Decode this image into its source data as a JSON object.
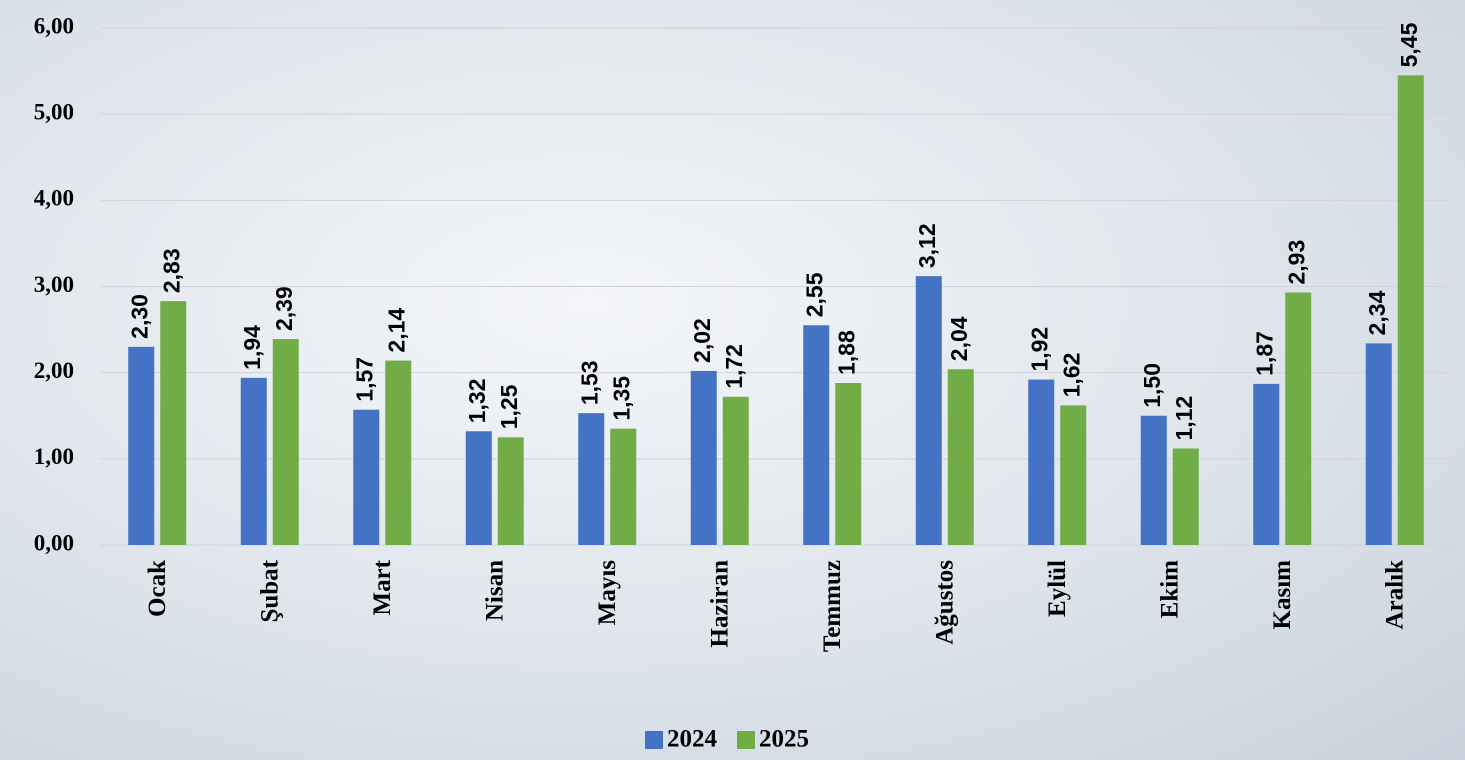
{
  "chart_data": {
    "type": "bar",
    "categories": [
      "Ocak",
      "Şubat",
      "Mart",
      "Nisan",
      "Mayıs",
      "Haziran",
      "Temmuz",
      "Ağustos",
      "Eylül",
      "Ekim",
      "Kasım",
      "Aralık"
    ],
    "series": [
      {
        "name": "2024",
        "color": "#4472c4",
        "values": [
          2.3,
          1.94,
          1.57,
          1.32,
          1.53,
          2.02,
          2.55,
          3.12,
          1.92,
          1.5,
          1.87,
          2.34
        ],
        "value_labels": [
          "2,30",
          "1,94",
          "1,57",
          "1,32",
          "1,53",
          "2,02",
          "2,55",
          "3,12",
          "1,92",
          "1,50",
          "1,87",
          "2,34"
        ]
      },
      {
        "name": "2025",
        "color": "#70ad47",
        "values": [
          2.83,
          2.39,
          2.14,
          1.25,
          1.35,
          1.72,
          1.88,
          2.04,
          1.62,
          1.12,
          2.93,
          5.45
        ],
        "value_labels": [
          "2,83",
          "2,39",
          "2,14",
          "1,25",
          "1,35",
          "1,72",
          "1,88",
          "2,04",
          "1,62",
          "1,12",
          "2,93",
          "5,45"
        ]
      }
    ],
    "ylim": [
      0,
      6
    ],
    "yticks": [
      {
        "value": 0,
        "label": "0,00"
      },
      {
        "value": 1,
        "label": "1,00"
      },
      {
        "value": 2,
        "label": "2,00"
      },
      {
        "value": 3,
        "label": "3,00"
      },
      {
        "value": 4,
        "label": "4,00"
      },
      {
        "value": 5,
        "label": "5,00"
      },
      {
        "value": 6,
        "label": "6,00"
      }
    ],
    "grid": true,
    "legend": "bottom"
  }
}
